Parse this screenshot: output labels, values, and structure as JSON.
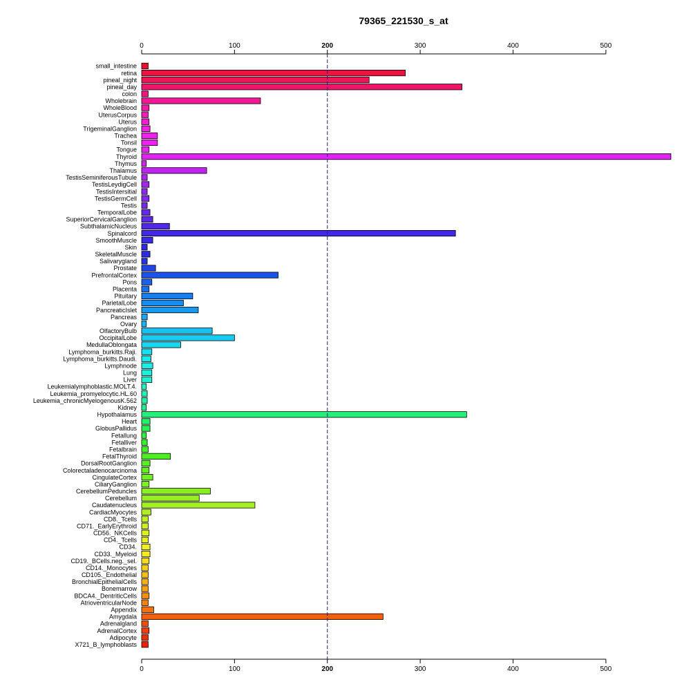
{
  "chart_data": {
    "type": "bar",
    "orientation": "horizontal",
    "title": "79365_221530_s_at",
    "xlim": [
      0,
      570
    ],
    "xticks": [
      0,
      100,
      200,
      300,
      400,
      500
    ],
    "reference_line": 200,
    "grid": false,
    "categories": [
      "small_intestine",
      "retina",
      "pineal_night",
      "pineal_day",
      "colon",
      "Wholebrain",
      "WholeBlood",
      "UterusCorpus",
      "Uterus",
      "TrigeminalGanglion",
      "Trachea",
      "Tonsil",
      "Tongue",
      "Thyroid",
      "Thymus",
      "Thalamus",
      "TestisSeminiferousTubule",
      "TestisLeydigCell",
      "TestisIntersitial",
      "TestisGermCell",
      "Testis",
      "TemporalLobe",
      "SuperiorCervicalGanglion",
      "SubthalamicNucleus",
      "Spinalcord",
      "SmoothMuscle",
      "Skin",
      "SkeletalMuscle",
      "Salivarygland",
      "Prostate",
      "PrefrontalCortex",
      "Pons",
      "Placenta",
      "Pituitary",
      "ParietalLobe",
      "PancreaticIslet",
      "Pancreas",
      "Ovary",
      "OlfactoryBulb",
      "OccipitalLobe",
      "MedullaOblongata",
      "Lymphoma_burkitts.Raji.",
      "Lymphoma_burkitts.Daudi.",
      "Lymphnode",
      "Lung",
      "Liver",
      "Leukemialymphoblastic.MOLT.4.",
      "Leukemia_promyelocytic.HL.60",
      "Leukemia_chronicMyelogenousK.562",
      "Kidney",
      "Hypothalamus",
      "Heart",
      "GlobusPallidus",
      "Fetallung",
      "Fetalliver",
      "Fetalbrain",
      "FetalThyroid",
      "DorsalRootGanglion",
      "Colorectaladenocarcinoma",
      "CingulateCortex",
      "CiliaryGanglion",
      "CerebellumPeduncles",
      "Cerebellum",
      "Caudatenucleus",
      "CardiacMyocytes",
      "CD8._Tcells",
      "CD71._EarlyErythroid",
      "CD56._NKCells",
      "CD4._Tcells",
      "CD34.",
      "CD33._Myeloid",
      "CD19._BCells.neg._sel.",
      "CD14._Monocytes",
      "CD105._Endothelial",
      "BronchialEpithelialCells",
      "Bonemarrow",
      "BDCA4._DentriticCells",
      "AtrioventricularNode",
      "Appendix",
      "Amygdala",
      "Adrenalgland",
      "AdrenalCortex",
      "Adipocyte",
      "X721_B_lymphoblasts"
    ],
    "values": [
      7,
      284,
      245,
      345,
      7,
      128,
      8,
      7,
      8,
      9,
      17,
      17,
      8,
      570,
      5,
      70,
      6,
      8,
      6,
      8,
      6,
      9,
      12,
      30,
      338,
      12,
      6,
      9,
      6,
      15,
      147,
      11,
      8,
      55,
      45,
      61,
      6,
      5,
      76,
      100,
      42,
      11,
      10,
      12,
      11,
      11,
      5,
      6,
      6,
      5,
      350,
      9,
      9,
      5,
      6,
      7,
      31,
      9,
      8,
      12,
      8,
      74,
      62,
      122,
      10,
      7,
      7,
      8,
      7,
      9,
      9,
      8,
      7,
      7,
      7,
      7,
      8,
      7,
      13,
      260,
      7,
      8,
      7,
      7
    ],
    "colors": [
      "#e8102e",
      "#ec1242",
      "#ee1456",
      "#ee146a",
      "#f01680",
      "#f01894",
      "#f01aa8",
      "#f01cbc",
      "#f01ed0",
      "#f020e0",
      "#f020ec",
      "#ee20f2",
      "#e822f2",
      "#e022f2",
      "#d022f0",
      "#c022f0",
      "#b024f0",
      "#a026ee",
      "#9228ee",
      "#8428ee",
      "#7628ec",
      "#6828ec",
      "#5c28ea",
      "#5028ea",
      "#4428e8",
      "#3a28e8",
      "#3028e8",
      "#2a2ce8",
      "#2436e8",
      "#2044e8",
      "#1c52e8",
      "#1a62ea",
      "#1870ec",
      "#167eee",
      "#168cf0",
      "#169af0",
      "#16a8f2",
      "#16b6f2",
      "#16c2f2",
      "#16ccf2",
      "#16d6f2",
      "#16e0f0",
      "#18e8ec",
      "#1aeee6",
      "#1cf0de",
      "#1ef0d4",
      "#20f0c6",
      "#22f0b6",
      "#22f0a4",
      "#22f090",
      "#22f07a",
      "#24f064",
      "#28f050",
      "#30f040",
      "#38f032",
      "#42f028",
      "#4cf022",
      "#58f020",
      "#64f020",
      "#70f020",
      "#7cf020",
      "#88f020",
      "#94f020",
      "#a2f020",
      "#b0f020",
      "#bef020",
      "#ccf020",
      "#daf020",
      "#e6f020",
      "#f2f020",
      "#f6ea1e",
      "#f6dc1c",
      "#f6ce1a",
      "#f6c018",
      "#f6b016",
      "#f6a014",
      "#f69012",
      "#f68010",
      "#f6700e",
      "#f4600c",
      "#f2500a",
      "#f04008",
      "#ee3006",
      "#ec2004"
    ]
  }
}
